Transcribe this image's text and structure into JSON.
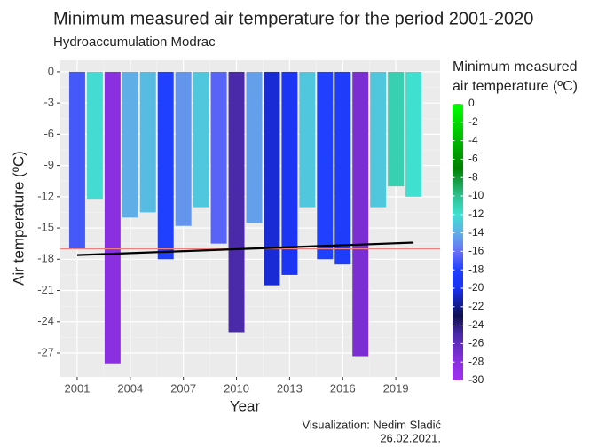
{
  "chart_data": {
    "type": "bar",
    "title": "Minimum measured air temperature for the period 2001-2020",
    "subtitle": "Hydroaccumulation Modrac",
    "x_label": "Year",
    "y_label": "Air temperature (ºC)",
    "caption": [
      "Visualization: Nedim Sladić",
      "26.02.2021."
    ],
    "x": [
      2001,
      2002,
      2003,
      2004,
      2005,
      2006,
      2007,
      2008,
      2009,
      2010,
      2011,
      2012,
      2013,
      2014,
      2015,
      2016,
      2017,
      2018,
      2019,
      2020
    ],
    "series": [
      {
        "name": "Minimum measured air temperature",
        "values": [
          -17.0,
          -12.2,
          -28.0,
          -14.0,
          -13.5,
          -18.0,
          -14.8,
          -13.0,
          -16.5,
          -25.0,
          -14.5,
          -20.5,
          -19.5,
          -13.0,
          -18.0,
          -18.5,
          -27.3,
          -13.0,
          -11.0,
          -12.0
        ]
      }
    ],
    "xlim": [
      2000.05,
      2021.5
    ],
    "xticks": [
      2001,
      2004,
      2007,
      2010,
      2013,
      2016,
      2019
    ],
    "ylim": [
      -29.3,
      1.1
    ],
    "yticks": [
      0,
      -3,
      -6,
      -9,
      -12,
      -15,
      -18,
      -21,
      -24,
      -27
    ],
    "grid": true,
    "hline": {
      "value": -17.0,
      "color": "#f08080"
    },
    "trend": {
      "x": [
        2001,
        2020
      ],
      "values": [
        -17.6,
        -16.4
      ],
      "color": "#000000"
    },
    "colorbar": {
      "title_lines": [
        "Minimum measured",
        "air temperature (ºC)"
      ],
      "lim": [
        -30,
        0
      ],
      "ticks": [
        0,
        -2,
        -4,
        -6,
        -8,
        -10,
        -12,
        -14,
        -16,
        -18,
        -20,
        -22,
        -24,
        -26,
        -28,
        -30
      ],
      "stops": [
        {
          "value": 0,
          "color": "#00ff00"
        },
        {
          "value": -7,
          "color": "#008000"
        },
        {
          "value": -10,
          "color": "#30c090"
        },
        {
          "value": -12,
          "color": "#40e0d0"
        },
        {
          "value": -14,
          "color": "#60aee8"
        },
        {
          "value": -16,
          "color": "#6a70f5"
        },
        {
          "value": -18,
          "color": "#2040ff"
        },
        {
          "value": -20,
          "color": "#1a30f0"
        },
        {
          "value": -23,
          "color": "#101050"
        },
        {
          "value": -25,
          "color": "#4a2aa8"
        },
        {
          "value": -28,
          "color": "#8a30e0"
        },
        {
          "value": -30,
          "color": "#a030f0"
        }
      ]
    }
  }
}
